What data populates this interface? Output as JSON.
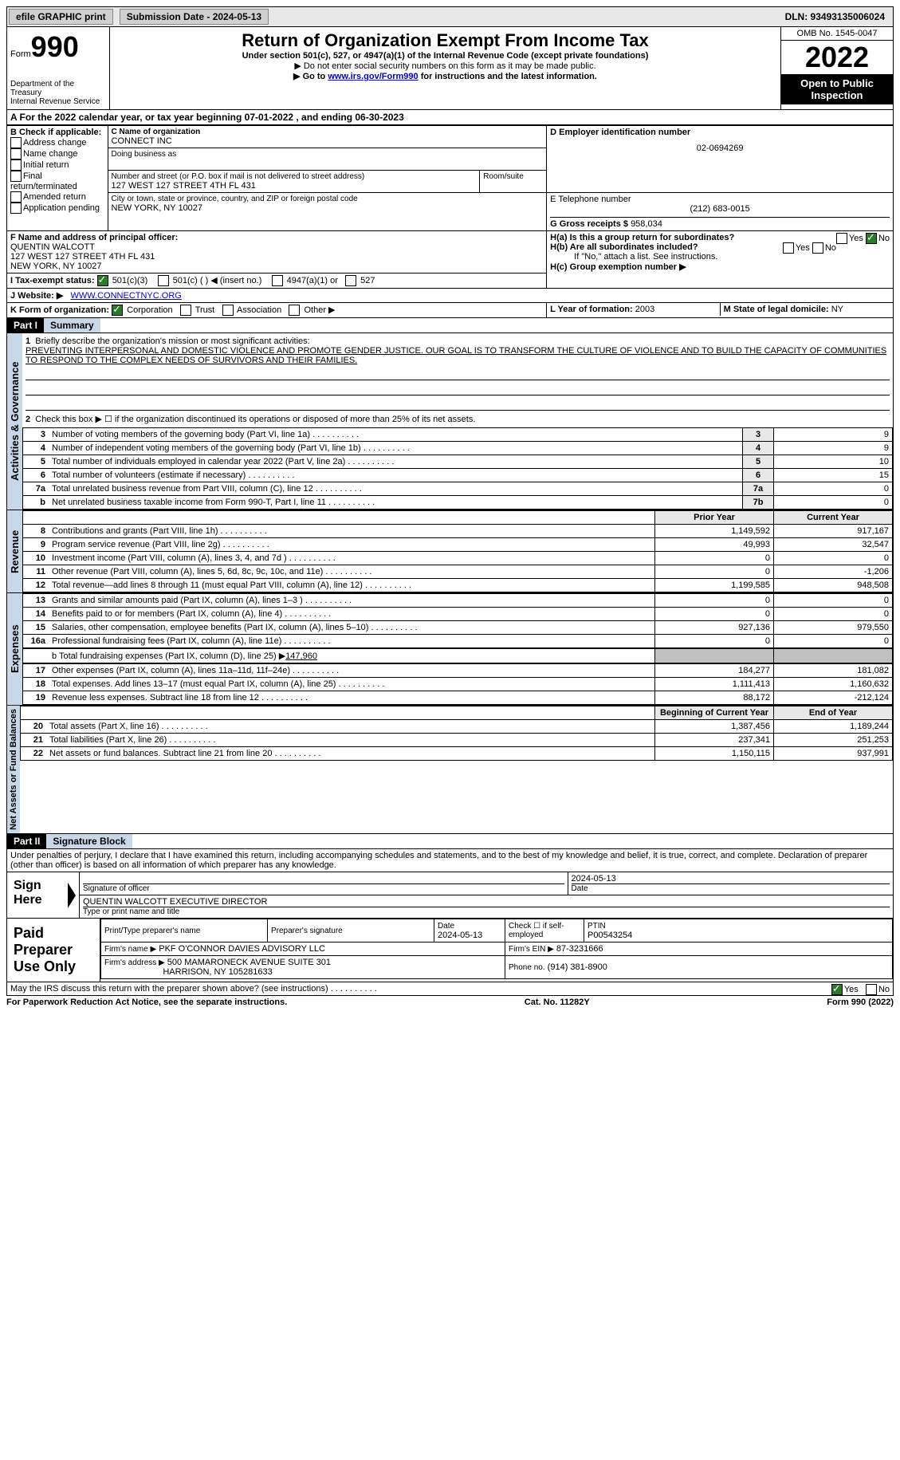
{
  "topbar": {
    "efile": "efile GRAPHIC print",
    "submission_label": "Submission Date - 2024-05-13",
    "dln": "DLN: 93493135006024"
  },
  "header": {
    "form": "Form",
    "num": "990",
    "dept": "Department of the Treasury",
    "irs": "Internal Revenue Service",
    "title": "Return of Organization Exempt From Income Tax",
    "sub": "Under section 501(c), 527, or 4947(a)(1) of the Internal Revenue Code (except private foundations)",
    "note1": "▶ Do not enter social security numbers on this form as it may be made public.",
    "note2_prefix": "▶ Go to ",
    "note2_link": "www.irs.gov/Form990",
    "note2_suffix": " for instructions and the latest information.",
    "omb": "OMB No. 1545-0047",
    "year": "2022",
    "inspect": "Open to Public Inspection"
  },
  "A": {
    "text": "A For the 2022 calendar year, or tax year beginning 07-01-2022    , and ending 06-30-2023"
  },
  "B": {
    "label": "B Check if applicable:",
    "opts": [
      "Address change",
      "Name change",
      "Initial return",
      "Final return/terminated",
      "Amended return",
      "Application pending"
    ]
  },
  "C": {
    "name_label": "C Name of organization",
    "name": "CONNECT INC",
    "dba": "Doing business as",
    "street_label": "Number and street (or P.O. box if mail is not delivered to street address)",
    "room_label": "Room/suite",
    "street": "127 WEST 127 STREET 4TH FL 431",
    "city_label": "City or town, state or province, country, and ZIP or foreign postal code",
    "city": "NEW YORK, NY  10027"
  },
  "D": {
    "label": "D Employer identification number",
    "val": "02-0694269"
  },
  "E": {
    "label": "E Telephone number",
    "val": "(212) 683-0015"
  },
  "G": {
    "label": "G Gross receipts $",
    "val": "958,034"
  },
  "F": {
    "label": "F  Name and address of principal officer:",
    "name": "QUENTIN WALCOTT",
    "street": "127 WEST 127 STREET 4TH FL 431",
    "city": "NEW YORK, NY  10027"
  },
  "H": {
    "a": "H(a)  Is this a group return for subordinates?",
    "b": "H(b)  Are all subordinates included?",
    "bnote": "If \"No,\" attach a list. See instructions.",
    "c": "H(c)  Group exemption number ▶",
    "yes": "Yes",
    "no": "No"
  },
  "I": {
    "label": "I    Tax-exempt status:",
    "o1": "501(c)(3)",
    "o2": "501(c) (  ) ◀ (insert no.)",
    "o3": "4947(a)(1) or",
    "o4": "527"
  },
  "J": {
    "label": "J   Website: ▶",
    "val": "WWW.CONNECTNYC.ORG"
  },
  "K": {
    "label": "K Form of organization:",
    "o1": "Corporation",
    "o2": "Trust",
    "o3": "Association",
    "o4": "Other ▶"
  },
  "L": {
    "label": "L Year of formation:",
    "val": "2003"
  },
  "M": {
    "label": "M State of legal domicile:",
    "val": "NY"
  },
  "part1": {
    "hdr": "Part I",
    "title": "Summary",
    "l1": "Briefly describe the organization's mission or most significant activities:",
    "mission": "PREVENTING INTERPERSONAL AND DOMESTIC VIOLENCE AND PROMOTE GENDER JUSTICE. OUR GOAL IS TO TRANSFORM THE CULTURE OF VIOLENCE AND TO BUILD THE CAPACITY OF COMMUNITIES TO RESPOND TO THE COMPLEX NEEDS OF SURVIVORS AND THEIR FAMILIES.",
    "l2": "Check this box ▶ ☐ if the organization discontinued its operations or disposed of more than 25% of its net assets.",
    "rows_a": [
      {
        "n": "3",
        "t": "Number of voting members of the governing body (Part VI, line 1a)",
        "b": "3",
        "v": "9"
      },
      {
        "n": "4",
        "t": "Number of independent voting members of the governing body (Part VI, line 1b)",
        "b": "4",
        "v": "9"
      },
      {
        "n": "5",
        "t": "Total number of individuals employed in calendar year 2022 (Part V, line 2a)",
        "b": "5",
        "v": "10"
      },
      {
        "n": "6",
        "t": "Total number of volunteers (estimate if necessary)",
        "b": "6",
        "v": "15"
      },
      {
        "n": "7a",
        "t": "Total unrelated business revenue from Part VIII, column (C), line 12",
        "b": "7a",
        "v": "0"
      },
      {
        "n": "b",
        "t": "Net unrelated business taxable income from Form 990-T, Part I, line 11",
        "b": "7b",
        "v": "0"
      }
    ],
    "col_prior": "Prior Year",
    "col_cur": "Current Year",
    "rows_rev": [
      {
        "n": "8",
        "t": "Contributions and grants (Part VIII, line 1h)",
        "p": "1,149,592",
        "c": "917,167"
      },
      {
        "n": "9",
        "t": "Program service revenue (Part VIII, line 2g)",
        "p": "49,993",
        "c": "32,547"
      },
      {
        "n": "10",
        "t": "Investment income (Part VIII, column (A), lines 3, 4, and 7d )",
        "p": "0",
        "c": "0"
      },
      {
        "n": "11",
        "t": "Other revenue (Part VIII, column (A), lines 5, 6d, 8c, 9c, 10c, and 11e)",
        "p": "0",
        "c": "-1,206"
      },
      {
        "n": "12",
        "t": "Total revenue—add lines 8 through 11 (must equal Part VIII, column (A), line 12)",
        "p": "1,199,585",
        "c": "948,508"
      }
    ],
    "rows_exp": [
      {
        "n": "13",
        "t": "Grants and similar amounts paid (Part IX, column (A), lines 1–3 )",
        "p": "0",
        "c": "0"
      },
      {
        "n": "14",
        "t": "Benefits paid to or for members (Part IX, column (A), line 4)",
        "p": "0",
        "c": "0"
      },
      {
        "n": "15",
        "t": "Salaries, other compensation, employee benefits (Part IX, column (A), lines 5–10)",
        "p": "927,136",
        "c": "979,550"
      },
      {
        "n": "16a",
        "t": "Professional fundraising fees (Part IX, column (A), line 11e)",
        "p": "0",
        "c": "0"
      }
    ],
    "l16b_prefix": "b   Total fundraising expenses (Part IX, column (D), line 25) ▶",
    "l16b_val": "147,960",
    "rows_exp2": [
      {
        "n": "17",
        "t": "Other expenses (Part IX, column (A), lines 11a–11d, 11f–24e)",
        "p": "184,277",
        "c": "181,082"
      },
      {
        "n": "18",
        "t": "Total expenses. Add lines 13–17 (must equal Part IX, column (A), line 25)",
        "p": "1,111,413",
        "c": "1,160,632"
      },
      {
        "n": "19",
        "t": "Revenue less expenses. Subtract line 18 from line 12",
        "p": "88,172",
        "c": "-212,124"
      }
    ],
    "col_beg": "Beginning of Current Year",
    "col_end": "End of Year",
    "rows_na": [
      {
        "n": "20",
        "t": "Total assets (Part X, line 16)",
        "p": "1,387,456",
        "c": "1,189,244"
      },
      {
        "n": "21",
        "t": "Total liabilities (Part X, line 26)",
        "p": "237,341",
        "c": "251,253"
      },
      {
        "n": "22",
        "t": "Net assets or fund balances. Subtract line 21 from line 20",
        "p": "1,150,115",
        "c": "937,991"
      }
    ],
    "sec_a": "Activities & Governance",
    "sec_rev": "Revenue",
    "sec_exp": "Expenses",
    "sec_na": "Net Assets or Fund Balances"
  },
  "part2": {
    "hdr": "Part II",
    "title": "Signature Block",
    "decl": "Under penalties of perjury, I declare that I have examined this return, including accompanying schedules and statements, and to the best of my knowledge and belief, it is true, correct, and complete. Declaration of preparer (other than officer) is based on all information of which preparer has any knowledge.",
    "sign_here": "Sign Here",
    "sig_officer": "Signature of officer",
    "sig_date": "2024-05-13",
    "date_label": "Date",
    "name_title": "QUENTIN WALCOTT  EXECUTIVE DIRECTOR",
    "type_name": "Type or print name and title",
    "paid": "Paid Preparer Use Only",
    "prep_name_label": "Print/Type preparer's name",
    "prep_sig_label": "Preparer's signature",
    "prep_date_label": "Date",
    "prep_date": "2024-05-13",
    "prep_check": "Check ☐ if self-employed",
    "ptin_label": "PTIN",
    "ptin": "P00543254",
    "firm_name_label": "Firm's name    ▶",
    "firm_name": "PKF O'CONNOR DAVIES ADVISORY LLC",
    "firm_ein_label": "Firm's EIN ▶",
    "firm_ein": "87-3231666",
    "firm_addr_label": "Firm's address ▶",
    "firm_addr1": "500 MAMARONECK AVENUE SUITE 301",
    "firm_addr2": "HARRISON, NY  105281633",
    "phone_label": "Phone no.",
    "phone": "(914) 381-8900",
    "discuss": "May the IRS discuss this return with the preparer shown above? (see instructions)",
    "yes": "Yes",
    "no": "No"
  },
  "footer": {
    "left": "For Paperwork Reduction Act Notice, see the separate instructions.",
    "mid": "Cat. No. 11282Y",
    "right": "Form 990 (2022)"
  }
}
